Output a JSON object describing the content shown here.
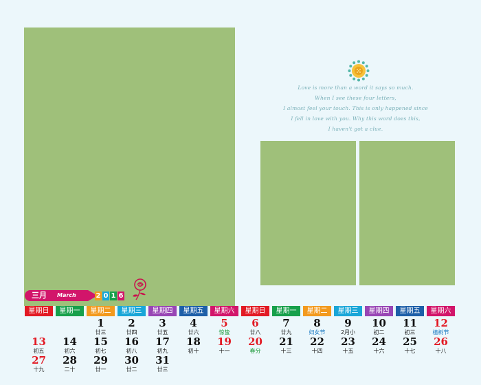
{
  "month": {
    "cn": "三月",
    "en": "March",
    "year_digits": [
      "2",
      "0",
      "1",
      "6"
    ]
  },
  "poem": [
    "Love is more than a word it says so much.",
    "When I see these four letters,",
    "I almost feel your touch. This is only happened since",
    "I fell in love with you. Why this word does this,",
    "I haven't got a clue."
  ],
  "weekdays": [
    "星期日",
    "星期一",
    "星期二",
    "星期三",
    "星期四",
    "星期五",
    "星期六"
  ],
  "weekday_colors": [
    "#e21a24",
    "#17a04b",
    "#f39a1e",
    "#19a6d8",
    "#9846b5",
    "#1d5fa8",
    "#d2156a"
  ],
  "days": [
    {
      "n": "1",
      "l": "廿三",
      "type": ""
    },
    {
      "n": "2",
      "l": "廿四",
      "type": ""
    },
    {
      "n": "3",
      "l": "廿五",
      "type": ""
    },
    {
      "n": "4",
      "l": "廿六",
      "type": ""
    },
    {
      "n": "5",
      "l": "惊蛰",
      "type": "sat-term"
    },
    {
      "n": "6",
      "l": "廿八",
      "type": "sun"
    },
    {
      "n": "7",
      "l": "廿九",
      "type": ""
    },
    {
      "n": "8",
      "l": "妇女节",
      "type": "fest"
    },
    {
      "n": "9",
      "l": "2月小",
      "type": ""
    },
    {
      "n": "10",
      "l": "初二",
      "type": ""
    },
    {
      "n": "11",
      "l": "初三",
      "type": ""
    },
    {
      "n": "12",
      "l": "植树节",
      "type": "sat-fest"
    },
    {
      "n": "13",
      "l": "初五",
      "type": "sun"
    },
    {
      "n": "14",
      "l": "初六",
      "type": ""
    },
    {
      "n": "15",
      "l": "初七",
      "type": ""
    },
    {
      "n": "16",
      "l": "初八",
      "type": ""
    },
    {
      "n": "17",
      "l": "初九",
      "type": ""
    },
    {
      "n": "18",
      "l": "初十",
      "type": ""
    },
    {
      "n": "19",
      "l": "十一",
      "type": "sat"
    },
    {
      "n": "20",
      "l": "春分",
      "type": "sun-term"
    },
    {
      "n": "21",
      "l": "十三",
      "type": ""
    },
    {
      "n": "22",
      "l": "十四",
      "type": ""
    },
    {
      "n": "23",
      "l": "十五",
      "type": ""
    },
    {
      "n": "24",
      "l": "十六",
      "type": ""
    },
    {
      "n": "25",
      "l": "十七",
      "type": ""
    },
    {
      "n": "26",
      "l": "十八",
      "type": "sat"
    },
    {
      "n": "27",
      "l": "十九",
      "type": "sun"
    },
    {
      "n": "28",
      "l": "二十",
      "type": ""
    },
    {
      "n": "29",
      "l": "廿一",
      "type": ""
    },
    {
      "n": "30",
      "l": "廿二",
      "type": ""
    },
    {
      "n": "31",
      "l": "廿三",
      "type": ""
    }
  ]
}
